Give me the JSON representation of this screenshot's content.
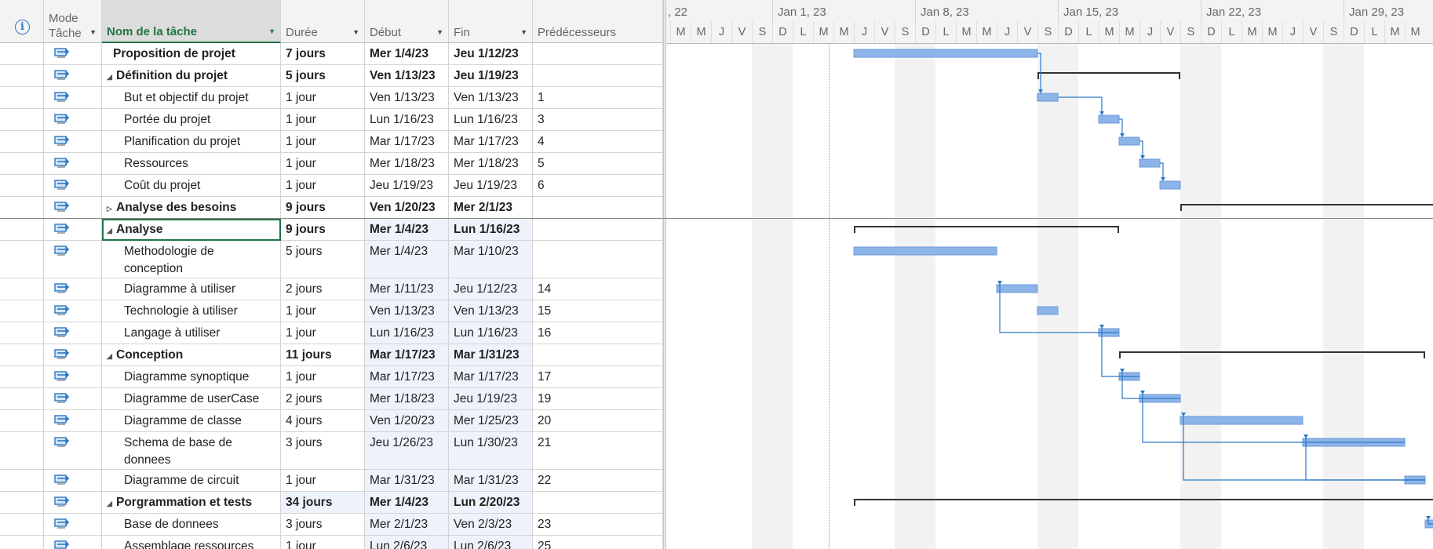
{
  "table_headers": {
    "info": "i",
    "mode": [
      "Mode",
      "Tâche"
    ],
    "name": "Nom de la tâche",
    "duration": "Durée",
    "start": "Début",
    "finish": "Fin",
    "predecessors": "Prédécesseurs"
  },
  "timeline": {
    "weeks": [
      ", 22",
      "Jan 1, 23",
      "Jan 8, 23",
      "Jan 15, 23",
      "Jan 22, 23",
      "Jan 29, 23"
    ],
    "day_letters": [
      "M",
      "M",
      "J",
      "V",
      "S",
      "D",
      "L",
      "M",
      "M",
      "J",
      "V",
      "S",
      "D",
      "L",
      "M",
      "M",
      "J",
      "V",
      "S",
      "D",
      "L",
      "M",
      "M",
      "J",
      "V",
      "S",
      "D",
      "L",
      "M",
      "M",
      "J",
      "V",
      "S",
      "D",
      "L",
      "M",
      "M"
    ]
  },
  "tasks": [
    {
      "name": "Proposition de projet",
      "duration": "7 jours",
      "start": "Mer 1/4/23",
      "finish": "Jeu 1/12/23",
      "pred": "",
      "bold": true,
      "indent": 0,
      "toggle": ""
    },
    {
      "name": "Définition du projet",
      "duration": "5 jours",
      "start": "Ven 1/13/23",
      "finish": "Jeu 1/19/23",
      "pred": "",
      "bold": true,
      "indent": 0,
      "toggle": "◢"
    },
    {
      "name": "But et objectif du projet",
      "duration": "1 jour",
      "start": "Ven 1/13/23",
      "finish": "Ven 1/13/23",
      "pred": "1",
      "bold": false,
      "indent": 1,
      "toggle": ""
    },
    {
      "name": "Portée du projet",
      "duration": "1 jour",
      "start": "Lun 1/16/23",
      "finish": "Lun 1/16/23",
      "pred": "3",
      "bold": false,
      "indent": 1,
      "toggle": ""
    },
    {
      "name": "Planification du projet",
      "duration": "1 jour",
      "start": "Mar 1/17/23",
      "finish": "Mar 1/17/23",
      "pred": "4",
      "bold": false,
      "indent": 1,
      "toggle": ""
    },
    {
      "name": "Ressources",
      "duration": "1 jour",
      "start": "Mer 1/18/23",
      "finish": "Mer 1/18/23",
      "pred": "5",
      "bold": false,
      "indent": 1,
      "toggle": ""
    },
    {
      "name": "Coût du projet",
      "duration": "1 jour",
      "start": "Jeu 1/19/23",
      "finish": "Jeu 1/19/23",
      "pred": "6",
      "bold": false,
      "indent": 1,
      "toggle": ""
    },
    {
      "name": "Analyse des besoins",
      "duration": "9 jours",
      "start": "Ven 1/20/23",
      "finish": "Mer 2/1/23",
      "pred": "",
      "bold": true,
      "indent": 0,
      "toggle": "▷"
    },
    {
      "name": "Analyse",
      "duration": "9 jours",
      "start": "Mer 1/4/23",
      "finish": "Lun 1/16/23",
      "pred": "",
      "bold": true,
      "indent": 0,
      "toggle": "◢"
    },
    {
      "name": "Methodologie de conception",
      "duration": "5 jours",
      "start": "Mer 1/4/23",
      "finish": "Mar 1/10/23",
      "pred": "",
      "bold": false,
      "indent": 1,
      "toggle": ""
    },
    {
      "name": "Diagramme à utiliser",
      "duration": "2 jours",
      "start": "Mer 1/11/23",
      "finish": "Jeu 1/12/23",
      "pred": "14",
      "bold": false,
      "indent": 1,
      "toggle": ""
    },
    {
      "name": "Technologie à utiliser",
      "duration": "1 jour",
      "start": "Ven 1/13/23",
      "finish": "Ven 1/13/23",
      "pred": "15",
      "bold": false,
      "indent": 1,
      "toggle": ""
    },
    {
      "name": "Langage à utiliser",
      "duration": "1 jour",
      "start": "Lun 1/16/23",
      "finish": "Lun 1/16/23",
      "pred": "16",
      "bold": false,
      "indent": 1,
      "toggle": ""
    },
    {
      "name": "Conception",
      "duration": "11 jours",
      "start": "Mar 1/17/23",
      "finish": "Mar 1/31/23",
      "pred": "",
      "bold": true,
      "indent": 0,
      "toggle": "◢"
    },
    {
      "name": "Diagramme synoptique",
      "duration": "1 jour",
      "start": "Mar 1/17/23",
      "finish": "Mar 1/17/23",
      "pred": "17",
      "bold": false,
      "indent": 1,
      "toggle": ""
    },
    {
      "name": "Diagramme de userCase",
      "duration": "2 jours",
      "start": "Mer 1/18/23",
      "finish": "Jeu 1/19/23",
      "pred": "19",
      "bold": false,
      "indent": 1,
      "toggle": ""
    },
    {
      "name": "Diagramme de classe",
      "duration": "4 jours",
      "start": "Ven 1/20/23",
      "finish": "Mer 1/25/23",
      "pred": "20",
      "bold": false,
      "indent": 1,
      "toggle": ""
    },
    {
      "name": "Schema de base de donnees",
      "duration": "3 jours",
      "start": "Jeu 1/26/23",
      "finish": "Lun 1/30/23",
      "pred": "21",
      "bold": false,
      "indent": 1,
      "toggle": ""
    },
    {
      "name": "Diagramme de circuit",
      "duration": "1 jour",
      "start": "Mar 1/31/23",
      "finish": "Mar 1/31/23",
      "pred": "22",
      "bold": false,
      "indent": 1,
      "toggle": ""
    },
    {
      "name": "Porgrammation et tests",
      "duration": "34 jours",
      "start": "Mer 1/4/23",
      "finish": "Lun 2/20/23",
      "pred": "",
      "bold": true,
      "indent": 0,
      "toggle": "◢"
    },
    {
      "name": "Base de donnees",
      "duration": "3 jours",
      "start": "Mer 2/1/23",
      "finish": "Ven 2/3/23",
      "pred": "23",
      "bold": false,
      "indent": 1,
      "toggle": ""
    },
    {
      "name": "Assemblage ressources",
      "duration": "1 jour",
      "start": "Lun 2/6/23",
      "finish": "Lun 2/6/23",
      "pred": "25",
      "bold": false,
      "indent": 1,
      "toggle": ""
    }
  ],
  "colors": {
    "accent": "#217346",
    "bar": "#8db4e8",
    "link": "#2b78c5"
  }
}
